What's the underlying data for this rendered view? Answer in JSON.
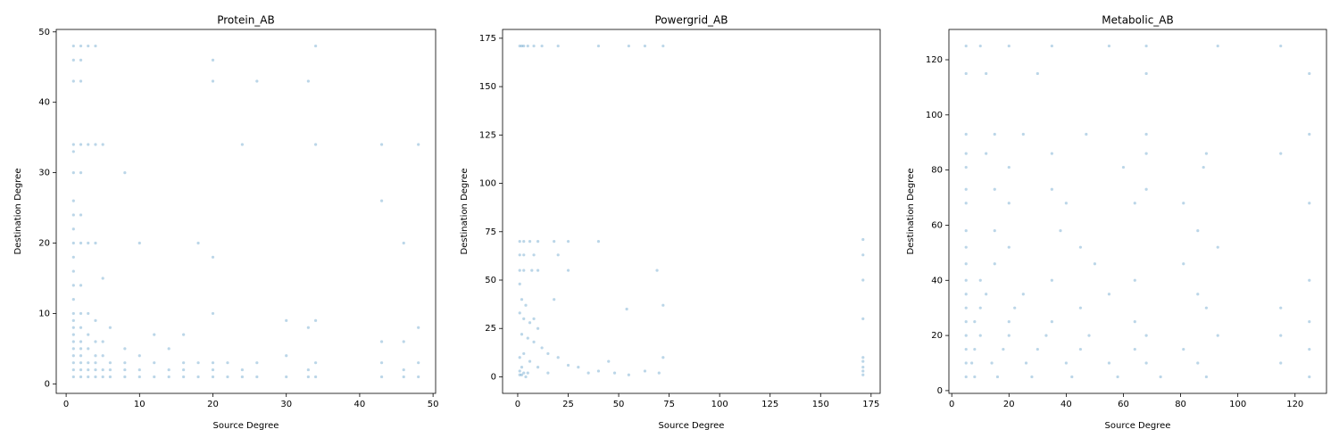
{
  "chart_data": [
    {
      "type": "scatter",
      "title": "Protein_AB",
      "xlabel": "Source Degree",
      "ylabel": "Destination Degree",
      "color": "#1f77b4",
      "alpha": 0.3,
      "xlim": [
        -1.35,
        50.35
      ],
      "ylim": [
        -1.35,
        50.35
      ],
      "xticks": [
        0,
        10,
        20,
        30,
        40,
        50
      ],
      "yticks": [
        0,
        10,
        20,
        30,
        40,
        50
      ],
      "x": [
        1,
        1,
        1,
        1,
        1,
        1,
        1,
        1,
        1,
        1,
        1,
        1,
        1,
        1,
        1,
        1,
        1,
        1,
        1,
        1,
        1,
        1,
        1,
        1,
        2,
        2,
        2,
        2,
        2,
        2,
        2,
        2,
        2,
        2,
        2,
        2,
        2,
        2,
        2,
        2,
        3,
        3,
        3,
        3,
        3,
        3,
        3,
        3,
        3,
        4,
        4,
        4,
        4,
        4,
        4,
        4,
        4,
        4,
        5,
        5,
        5,
        5,
        5,
        5,
        6,
        6,
        6,
        6,
        8,
        8,
        8,
        8,
        8,
        10,
        10,
        10,
        10,
        12,
        12,
        12,
        14,
        14,
        14,
        16,
        16,
        16,
        16,
        18,
        18,
        18,
        20,
        20,
        20,
        20,
        20,
        20,
        20,
        22,
        22,
        24,
        24,
        24,
        26,
        26,
        26,
        30,
        30,
        30,
        33,
        33,
        33,
        33,
        34,
        34,
        34,
        34,
        34,
        43,
        43,
        43,
        43,
        43,
        46,
        46,
        46,
        46,
        48,
        48,
        48,
        48
      ],
      "y": [
        1,
        2,
        3,
        4,
        5,
        6,
        7,
        8,
        9,
        10,
        12,
        14,
        16,
        18,
        20,
        22,
        24,
        26,
        30,
        33,
        34,
        43,
        46,
        48,
        1,
        2,
        3,
        4,
        5,
        6,
        8,
        10,
        14,
        20,
        24,
        30,
        34,
        43,
        46,
        48,
        1,
        2,
        3,
        5,
        7,
        10,
        20,
        34,
        48,
        1,
        2,
        3,
        4,
        6,
        9,
        20,
        34,
        48,
        1,
        2,
        4,
        6,
        15,
        34,
        1,
        2,
        3,
        8,
        1,
        2,
        3,
        5,
        30,
        1,
        2,
        4,
        20,
        1,
        3,
        7,
        1,
        2,
        5,
        1,
        2,
        3,
        7,
        1,
        3,
        20,
        1,
        2,
        3,
        10,
        18,
        43,
        46,
        1,
        3,
        1,
        2,
        34,
        1,
        3,
        43,
        1,
        4,
        9,
        1,
        2,
        8,
        43,
        1,
        3,
        9,
        34,
        48,
        1,
        3,
        6,
        26,
        34,
        1,
        2,
        6,
        20,
        1,
        3,
        8,
        34
      ]
    },
    {
      "type": "scatter",
      "title": "Powergrid_AB",
      "xlabel": "Source Degree",
      "ylabel": "Destination Degree",
      "color": "#1f77b4",
      "alpha": 0.3,
      "xlim": [
        -7.5,
        179.5
      ],
      "ylim": [
        -8.55,
        179.55
      ],
      "xticks": [
        0,
        25,
        50,
        75,
        100,
        125,
        150,
        175
      ],
      "yticks": [
        0,
        25,
        50,
        75,
        100,
        125,
        150,
        175
      ],
      "x": [
        1,
        2,
        3,
        5,
        8,
        12,
        20,
        40,
        55,
        63,
        72,
        1,
        3,
        6,
        10,
        18,
        25,
        40,
        1,
        3,
        8,
        20,
        1,
        3,
        7,
        10,
        25,
        1,
        2,
        4,
        1,
        3,
        6,
        10,
        2,
        5,
        8,
        12,
        15,
        3,
        20,
        1,
        6,
        25,
        30,
        10,
        2,
        1,
        5,
        15,
        35,
        40,
        48,
        55,
        63,
        70,
        72,
        72,
        69,
        54,
        45,
        171,
        171,
        171,
        171,
        171,
        171,
        171,
        171,
        171,
        18,
        8,
        3,
        1,
        2,
        4
      ],
      "y": [
        171,
        171,
        171,
        171,
        171,
        171,
        171,
        171,
        171,
        171,
        171,
        70,
        70,
        70,
        70,
        70,
        70,
        70,
        63,
        63,
        63,
        63,
        55,
        55,
        55,
        55,
        55,
        48,
        40,
        37,
        33,
        30,
        28,
        25,
        22,
        20,
        18,
        15,
        12,
        12,
        10,
        10,
        8,
        6,
        5,
        5,
        5,
        3,
        2,
        2,
        2,
        3,
        2,
        1,
        3,
        2,
        10,
        37,
        55,
        35,
        8,
        1,
        3,
        5,
        8,
        10,
        30,
        50,
        63,
        71,
        40,
        30,
        2,
        1,
        1,
        0
      ]
    },
    {
      "type": "scatter",
      "title": "Metabolic_AB",
      "xlabel": "Source Degree",
      "ylabel": "Destination Degree",
      "color": "#1f77b4",
      "alpha": 0.3,
      "xlim": [
        -1,
        131
      ],
      "ylim": [
        -1,
        131
      ],
      "xticks": [
        0,
        20,
        40,
        60,
        80,
        100,
        120
      ],
      "yticks": [
        0,
        20,
        40,
        60,
        80,
        100,
        120
      ],
      "x": [
        5,
        10,
        20,
        35,
        55,
        68,
        93,
        115,
        5,
        12,
        30,
        68,
        125,
        5,
        15,
        25,
        47,
        68,
        125,
        5,
        12,
        35,
        68,
        89,
        115,
        5,
        20,
        60,
        88,
        5,
        15,
        35,
        68,
        5,
        20,
        40,
        64,
        81,
        125,
        5,
        15,
        38,
        86,
        5,
        20,
        45,
        93,
        5,
        15,
        50,
        81,
        5,
        10,
        35,
        64,
        125,
        5,
        12,
        25,
        55,
        86,
        5,
        10,
        22,
        45,
        89,
        115,
        5,
        8,
        20,
        35,
        64,
        125,
        5,
        10,
        20,
        33,
        48,
        68,
        93,
        115,
        5,
        8,
        18,
        30,
        45,
        64,
        81,
        125,
        5,
        7,
        14,
        26,
        40,
        55,
        68,
        86,
        115,
        5,
        8,
        16,
        28,
        42,
        58,
        73,
        89,
        125
      ],
      "y": [
        125,
        125,
        125,
        125,
        125,
        125,
        125,
        125,
        115,
        115,
        115,
        115,
        115,
        93,
        93,
        93,
        93,
        93,
        93,
        86,
        86,
        86,
        86,
        86,
        86,
        81,
        81,
        81,
        81,
        73,
        73,
        73,
        73,
        68,
        68,
        68,
        68,
        68,
        68,
        58,
        58,
        58,
        58,
        52,
        52,
        52,
        52,
        46,
        46,
        46,
        46,
        40,
        40,
        40,
        40,
        40,
        35,
        35,
        35,
        35,
        35,
        30,
        30,
        30,
        30,
        30,
        30,
        25,
        25,
        25,
        25,
        25,
        25,
        20,
        20,
        20,
        20,
        20,
        20,
        20,
        20,
        15,
        15,
        15,
        15,
        15,
        15,
        15,
        15,
        10,
        10,
        10,
        10,
        10,
        10,
        10,
        10,
        10,
        5,
        5,
        5,
        5,
        5,
        5,
        5,
        5,
        5
      ]
    }
  ]
}
